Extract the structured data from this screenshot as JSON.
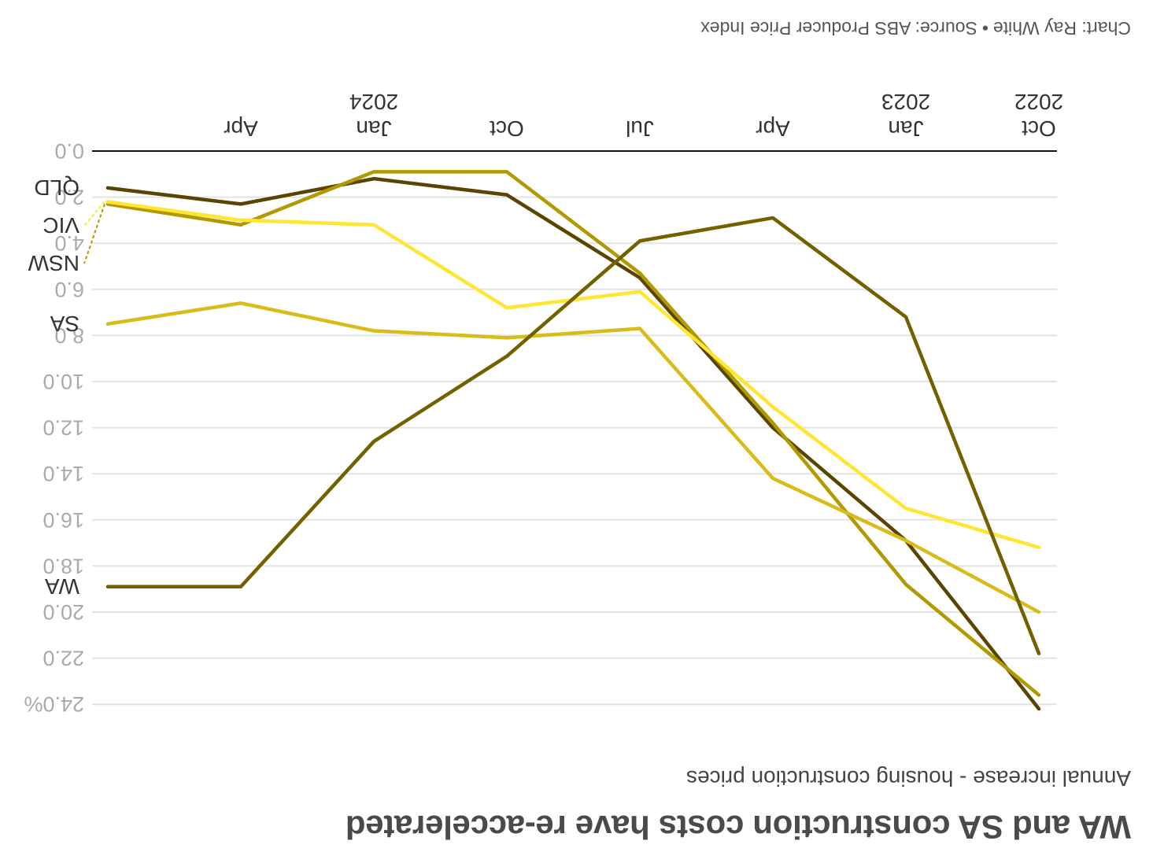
{
  "header": {
    "title": "WA and SA construction costs have re-accelerated",
    "subtitle": "Annual increase - housing construction prices"
  },
  "footer": {
    "chart_credit": "Chart: Ray White",
    "source": "Source: ABS Producer Price Index"
  },
  "colors": {
    "QLD": "#5a4500",
    "NSW": "#b09a00",
    "VIC": "#ffe633",
    "SA": "#d9bb1a",
    "WA": "#736100",
    "grid": "#e3e3e3",
    "axis": "#111111",
    "tick_text": "#aaaaaa",
    "label_text": "#333333"
  },
  "chart_data": {
    "type": "line",
    "title": "WA and SA construction costs have re-accelerated",
    "subtitle": "Annual increase - housing construction prices",
    "x": [
      "2022-10",
      "2023-01",
      "2023-04",
      "2023-07",
      "2023-10",
      "2024-01",
      "2024-04",
      "2024-07"
    ],
    "x_tick_labels": [
      {
        "index": 0,
        "line1": "Oct",
        "line2": "2022"
      },
      {
        "index": 1,
        "line1": "Jan",
        "line2": "2023"
      },
      {
        "index": 2,
        "line1": "Apr",
        "line2": ""
      },
      {
        "index": 3,
        "line1": "Jul",
        "line2": ""
      },
      {
        "index": 4,
        "line1": "Oct",
        "line2": ""
      },
      {
        "index": 5,
        "line1": "Jan",
        "line2": "2024"
      },
      {
        "index": 6,
        "line1": "Apr",
        "line2": ""
      }
    ],
    "y_ticks": [
      "0.0",
      "2.0",
      "4.0",
      "6.0",
      "8.0",
      "10.0",
      "12.0",
      "14.0",
      "16.0",
      "18.0",
      "20.0",
      "22.0",
      "24.0%"
    ],
    "ylim": [
      0,
      24
    ],
    "y_inverted": true,
    "grid": true,
    "legend": "end-of-line labels",
    "series": [
      {
        "name": "QLD",
        "values": [
          24.2,
          16.9,
          12.0,
          5.5,
          1.9,
          1.2,
          2.3,
          1.6
        ]
      },
      {
        "name": "NSW",
        "values": [
          23.6,
          18.8,
          11.8,
          5.3,
          0.9,
          0.9,
          3.2,
          2.3
        ]
      },
      {
        "name": "VIC",
        "values": [
          17.2,
          15.5,
          11.1,
          6.1,
          6.8,
          3.2,
          3.0,
          2.2
        ]
      },
      {
        "name": "SA",
        "values": [
          20.0,
          16.9,
          14.2,
          7.7,
          8.1,
          7.8,
          6.6,
          7.5
        ]
      },
      {
        "name": "WA",
        "values": [
          21.8,
          7.2,
          2.9,
          3.9,
          8.9,
          12.6,
          18.9,
          18.9
        ]
      }
    ],
    "end_labels": [
      {
        "name": "QLD",
        "series": "QLD"
      },
      {
        "name": "NSW",
        "series": "NSW"
      },
      {
        "name": "VIC",
        "series": "VIC"
      },
      {
        "name": "SA",
        "series": "SA"
      },
      {
        "name": "WA",
        "series": "WA"
      }
    ]
  }
}
